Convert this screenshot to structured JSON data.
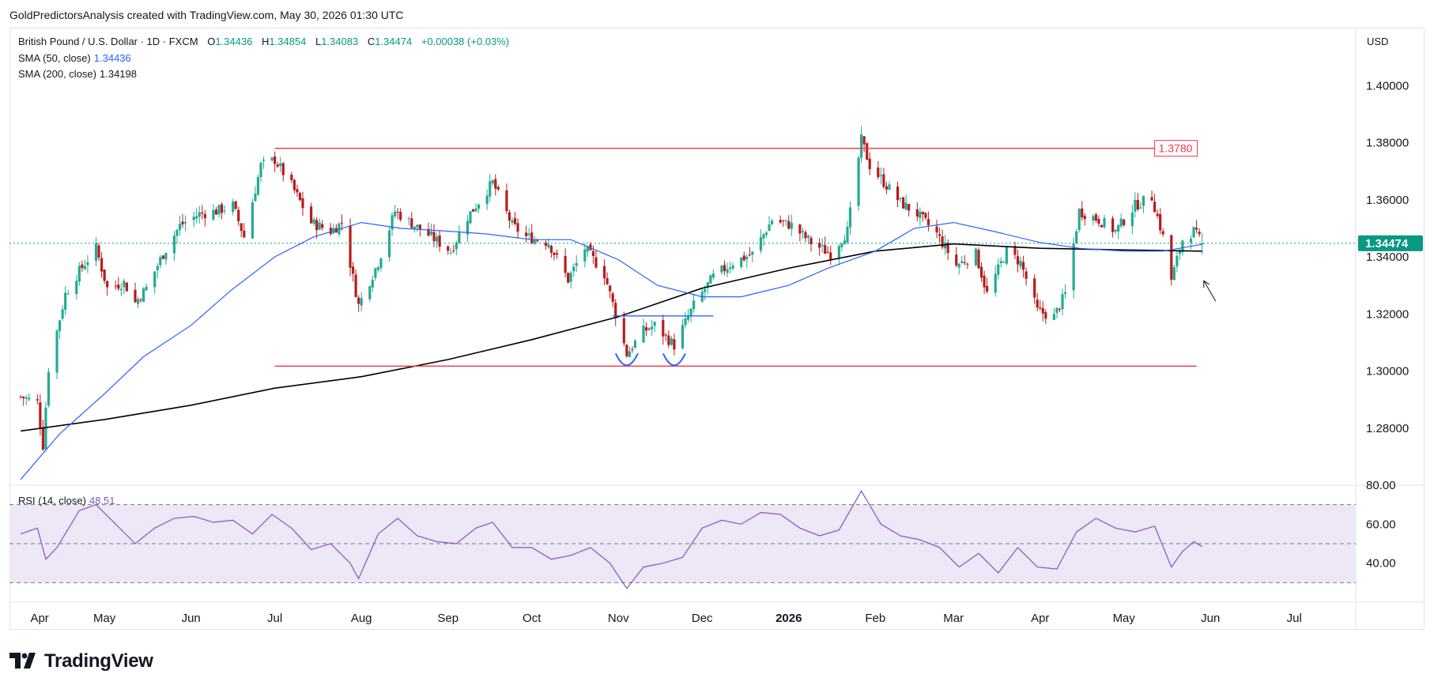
{
  "header": {
    "text": "GoldPredictorsAnalysis created with TradingView.com, May 30, 2026 01:30 UTC"
  },
  "legend": {
    "symbol": "British Pound / U.S. Dollar · 1D · FXCM",
    "o_label": "O",
    "o_value": "1.34436",
    "h_label": "H",
    "h_value": "1.34854",
    "l_label": "L",
    "l_value": "1.34083",
    "c_label": "C",
    "c_value": "1.34474",
    "change": "+0.00038 (+0.03%)",
    "sma50_label": "SMA (50, close)",
    "sma50_value": "1.34436",
    "sma200_label": "SMA (200, close)",
    "sma200_value": "1.34198",
    "rsi_label": "RSI (14, close)",
    "rsi_value": "48.51"
  },
  "currency": "USD",
  "logo_text": "TradingView",
  "colors": {
    "up": "#22ab94",
    "down": "#b71c1c",
    "sma50": "#2962ff",
    "sma200": "#000000",
    "rsi": "#7e57c2",
    "rsi_band": "#ede7f6",
    "resistance": "#f23645",
    "pattern": "#2962ff",
    "last_price_bg": "#089981",
    "level_tag": "#f23645"
  },
  "chart_data": {
    "type": "candlestick",
    "title": "British Pound / U.S. Dollar · 1D · FXCM",
    "ylim": [
      1.26,
      1.42
    ],
    "y_ticks": [
      "1.28000",
      "1.30000",
      "1.32000",
      "1.34000",
      "1.36000",
      "1.38000",
      "1.40000"
    ],
    "x_ticks": [
      "Apr",
      "May",
      "Jun",
      "Jul",
      "Aug",
      "Sep",
      "Oct",
      "Nov",
      "Dec",
      "2026",
      "Feb",
      "Mar",
      "Apr",
      "May",
      "Jun",
      "Jul"
    ],
    "last_price": 1.34474,
    "last_price_label": "1.34474",
    "level_label": "1.3780",
    "lines": [
      {
        "name": "resistance",
        "y": 1.378,
        "from": "2025-07-01",
        "to": "2026-05-27"
      },
      {
        "name": "support",
        "y": 1.3017,
        "from": "2025-07-01",
        "to": "2026-05-27"
      },
      {
        "name": "neckline",
        "y": 1.3193,
        "from": "2025-10-30",
        "to": "2025-12-05"
      }
    ],
    "price_path": [
      [
        "2025-04-01",
        1.291
      ],
      [
        "2025-04-07",
        1.289
      ],
      [
        "2025-04-09",
        1.274
      ],
      [
        "2025-04-11",
        1.301
      ],
      [
        "2025-04-17",
        1.327
      ],
      [
        "2025-04-22",
        1.335
      ],
      [
        "2025-04-28",
        1.343
      ],
      [
        "2025-05-02",
        1.329
      ],
      [
        "2025-05-08",
        1.331
      ],
      [
        "2025-05-12",
        1.324
      ],
      [
        "2025-05-16",
        1.329
      ],
      [
        "2025-05-22",
        1.341
      ],
      [
        "2025-05-28",
        1.351
      ],
      [
        "2025-06-04",
        1.355
      ],
      [
        "2025-06-10",
        1.356
      ],
      [
        "2025-06-16",
        1.358
      ],
      [
        "2025-06-20",
        1.347
      ],
      [
        "2025-06-26",
        1.372
      ],
      [
        "2025-07-01",
        1.374
      ],
      [
        "2025-07-07",
        1.365
      ],
      [
        "2025-07-14",
        1.352
      ],
      [
        "2025-07-21",
        1.349
      ],
      [
        "2025-07-25",
        1.352
      ],
      [
        "2025-07-31",
        1.323
      ],
      [
        "2025-08-07",
        1.338
      ],
      [
        "2025-08-13",
        1.356
      ],
      [
        "2025-08-20",
        1.351
      ],
      [
        "2025-08-26",
        1.347
      ],
      [
        "2025-09-02",
        1.342
      ],
      [
        "2025-09-08",
        1.354
      ],
      [
        "2025-09-17",
        1.366
      ],
      [
        "2025-09-24",
        1.351
      ],
      [
        "2025-09-29",
        1.347
      ],
      [
        "2025-10-07",
        1.345
      ],
      [
        "2025-10-14",
        1.332
      ],
      [
        "2025-10-20",
        1.343
      ],
      [
        "2025-10-27",
        1.334
      ],
      [
        "2025-11-04",
        1.306
      ],
      [
        "2025-11-10",
        1.314
      ],
      [
        "2025-11-14",
        1.316
      ],
      [
        "2025-11-21",
        1.309
      ],
      [
        "2025-11-28",
        1.323
      ],
      [
        "2025-12-05",
        1.333
      ],
      [
        "2025-12-12",
        1.338
      ],
      [
        "2025-12-19",
        1.341
      ],
      [
        "2025-12-26",
        1.353
      ],
      [
        "2026-01-02",
        1.351
      ],
      [
        "2026-01-09",
        1.345
      ],
      [
        "2026-01-16",
        1.341
      ],
      [
        "2026-01-22",
        1.349
      ],
      [
        "2026-01-27",
        1.381
      ],
      [
        "2026-01-30",
        1.372
      ],
      [
        "2026-02-05",
        1.365
      ],
      [
        "2026-02-10",
        1.359
      ],
      [
        "2026-02-16",
        1.355
      ],
      [
        "2026-02-23",
        1.348
      ],
      [
        "2026-03-02",
        1.337
      ],
      [
        "2026-03-09",
        1.341
      ],
      [
        "2026-03-13",
        1.327
      ],
      [
        "2026-03-20",
        1.342
      ],
      [
        "2026-03-25",
        1.338
      ],
      [
        "2026-03-31",
        1.321
      ],
      [
        "2026-04-06",
        1.319
      ],
      [
        "2026-04-10",
        1.327
      ],
      [
        "2026-04-15",
        1.356
      ],
      [
        "2026-04-22",
        1.353
      ],
      [
        "2026-04-28",
        1.349
      ],
      [
        "2026-05-05",
        1.358
      ],
      [
        "2026-05-11",
        1.361
      ],
      [
        "2026-05-15",
        1.347
      ],
      [
        "2026-05-18",
        1.332
      ],
      [
        "2026-05-22",
        1.346
      ],
      [
        "2026-05-26",
        1.349
      ],
      [
        "2026-05-29",
        1.34474
      ]
    ],
    "sma50": [
      [
        "2025-04-01",
        1.262
      ],
      [
        "2025-04-15",
        1.278
      ],
      [
        "2025-05-01",
        1.292
      ],
      [
        "2025-05-15",
        1.305
      ],
      [
        "2025-06-01",
        1.316
      ],
      [
        "2025-06-15",
        1.328
      ],
      [
        "2025-07-01",
        1.34
      ],
      [
        "2025-07-15",
        1.347
      ],
      [
        "2025-08-01",
        1.352
      ],
      [
        "2025-08-15",
        1.35
      ],
      [
        "2025-09-01",
        1.349
      ],
      [
        "2025-09-15",
        1.348
      ],
      [
        "2025-10-01",
        1.346
      ],
      [
        "2025-10-15",
        1.346
      ],
      [
        "2025-11-01",
        1.339
      ],
      [
        "2025-11-15",
        1.33
      ],
      [
        "2025-12-01",
        1.326
      ],
      [
        "2025-12-15",
        1.326
      ],
      [
        "2026-01-01",
        1.33
      ],
      [
        "2026-01-15",
        1.336
      ],
      [
        "2026-02-01",
        1.342
      ],
      [
        "2026-02-15",
        1.35
      ],
      [
        "2026-03-01",
        1.352
      ],
      [
        "2026-03-15",
        1.349
      ],
      [
        "2026-04-01",
        1.345
      ],
      [
        "2026-04-15",
        1.343
      ],
      [
        "2026-05-01",
        1.342
      ],
      [
        "2026-05-15",
        1.342
      ],
      [
        "2026-05-29",
        1.34436
      ]
    ],
    "sma200": [
      [
        "2025-04-01",
        1.279
      ],
      [
        "2025-05-01",
        1.283
      ],
      [
        "2025-06-01",
        1.288
      ],
      [
        "2025-07-01",
        1.294
      ],
      [
        "2025-08-01",
        1.298
      ],
      [
        "2025-09-01",
        1.304
      ],
      [
        "2025-10-01",
        1.311
      ],
      [
        "2025-11-01",
        1.319
      ],
      [
        "2025-12-01",
        1.329
      ],
      [
        "2026-01-01",
        1.336
      ],
      [
        "2026-02-01",
        1.342
      ],
      [
        "2026-03-01",
        1.3445
      ],
      [
        "2026-04-01",
        1.343
      ],
      [
        "2026-05-01",
        1.3424
      ],
      [
        "2026-05-29",
        1.34198
      ]
    ],
    "rsi": {
      "ylim": [
        20,
        80
      ],
      "y_ticks": [
        "40.00",
        "60.00",
        "80.00"
      ],
      "upper_band": 70,
      "middle": 50,
      "lower_band": 30,
      "values": [
        [
          "2025-04-01",
          55
        ],
        [
          "2025-04-07",
          58
        ],
        [
          "2025-04-10",
          42
        ],
        [
          "2025-04-14",
          48
        ],
        [
          "2025-04-22",
          67
        ],
        [
          "2025-04-28",
          70
        ],
        [
          "2025-05-05",
          60
        ],
        [
          "2025-05-12",
          50
        ],
        [
          "2025-05-19",
          58
        ],
        [
          "2025-05-26",
          63
        ],
        [
          "2025-06-02",
          64
        ],
        [
          "2025-06-09",
          61
        ],
        [
          "2025-06-16",
          62
        ],
        [
          "2025-06-23",
          55
        ],
        [
          "2025-06-30",
          65
        ],
        [
          "2025-07-07",
          58
        ],
        [
          "2025-07-14",
          47
        ],
        [
          "2025-07-21",
          50
        ],
        [
          "2025-07-28",
          40
        ],
        [
          "2025-07-31",
          32
        ],
        [
          "2025-08-07",
          55
        ],
        [
          "2025-08-14",
          63
        ],
        [
          "2025-08-21",
          54
        ],
        [
          "2025-08-28",
          51
        ],
        [
          "2025-09-04",
          50
        ],
        [
          "2025-09-11",
          58
        ],
        [
          "2025-09-17",
          61
        ],
        [
          "2025-09-24",
          48
        ],
        [
          "2025-10-01",
          48
        ],
        [
          "2025-10-08",
          42
        ],
        [
          "2025-10-15",
          44
        ],
        [
          "2025-10-22",
          48
        ],
        [
          "2025-10-29",
          40
        ],
        [
          "2025-11-04",
          27
        ],
        [
          "2025-11-10",
          38
        ],
        [
          "2025-11-17",
          40
        ],
        [
          "2025-11-24",
          43
        ],
        [
          "2025-12-01",
          58
        ],
        [
          "2025-12-08",
          62
        ],
        [
          "2025-12-15",
          60
        ],
        [
          "2025-12-22",
          66
        ],
        [
          "2025-12-29",
          65
        ],
        [
          "2026-01-05",
          58
        ],
        [
          "2026-01-12",
          54
        ],
        [
          "2026-01-19",
          57
        ],
        [
          "2026-01-27",
          77
        ],
        [
          "2026-02-03",
          60
        ],
        [
          "2026-02-10",
          54
        ],
        [
          "2026-02-17",
          52
        ],
        [
          "2026-02-24",
          48
        ],
        [
          "2026-03-03",
          38
        ],
        [
          "2026-03-10",
          45
        ],
        [
          "2026-03-17",
          35
        ],
        [
          "2026-03-24",
          48
        ],
        [
          "2026-03-31",
          38
        ],
        [
          "2026-04-07",
          37
        ],
        [
          "2026-04-14",
          56
        ],
        [
          "2026-04-21",
          63
        ],
        [
          "2026-04-28",
          58
        ],
        [
          "2026-05-05",
          56
        ],
        [
          "2026-05-12",
          59
        ],
        [
          "2026-05-18",
          38
        ],
        [
          "2026-05-22",
          46
        ],
        [
          "2026-05-26",
          51
        ],
        [
          "2026-05-29",
          48.51
        ]
      ]
    }
  }
}
